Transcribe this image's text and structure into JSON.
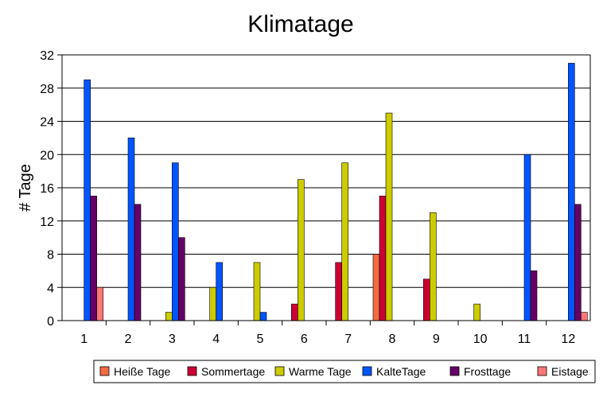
{
  "chart_data": {
    "type": "bar",
    "title": "Klimatage",
    "xlabel": "",
    "ylabel": "# Tage",
    "ylim": [
      0,
      32
    ],
    "yticks": [
      0,
      4,
      8,
      12,
      16,
      20,
      24,
      28,
      32
    ],
    "grid": true,
    "legend_position": "bottom-right",
    "categories": [
      "1",
      "2",
      "3",
      "4",
      "5",
      "6",
      "7",
      "8",
      "9",
      "10",
      "11",
      "12"
    ],
    "series": [
      {
        "name": "Heiße Tage",
        "color": "#f26b43",
        "values": [
          0,
          0,
          0,
          0,
          0,
          0,
          0,
          8,
          0,
          0,
          0,
          0
        ]
      },
      {
        "name": "Sommertage",
        "color": "#cc0033",
        "values": [
          0,
          0,
          0,
          0,
          0,
          2,
          7,
          15,
          5,
          0,
          0,
          0
        ]
      },
      {
        "name": "Warme Tage",
        "color": "#cccc00",
        "values": [
          0,
          0,
          1,
          4,
          7,
          17,
          19,
          25,
          13,
          2,
          0,
          0
        ]
      },
      {
        "name": "KalteTage",
        "color": "#0055ff",
        "values": [
          29,
          22,
          19,
          7,
          1,
          0,
          0,
          0,
          0,
          0,
          20,
          31
        ]
      },
      {
        "name": "Frosttage",
        "color": "#660066",
        "values": [
          15,
          14,
          10,
          0,
          0,
          0,
          0,
          0,
          0,
          0,
          6,
          14
        ]
      },
      {
        "name": "Eistage",
        "color": "#ff7777",
        "values": [
          4,
          0,
          0,
          0,
          0,
          0,
          0,
          0,
          0,
          0,
          0,
          1
        ]
      }
    ]
  }
}
